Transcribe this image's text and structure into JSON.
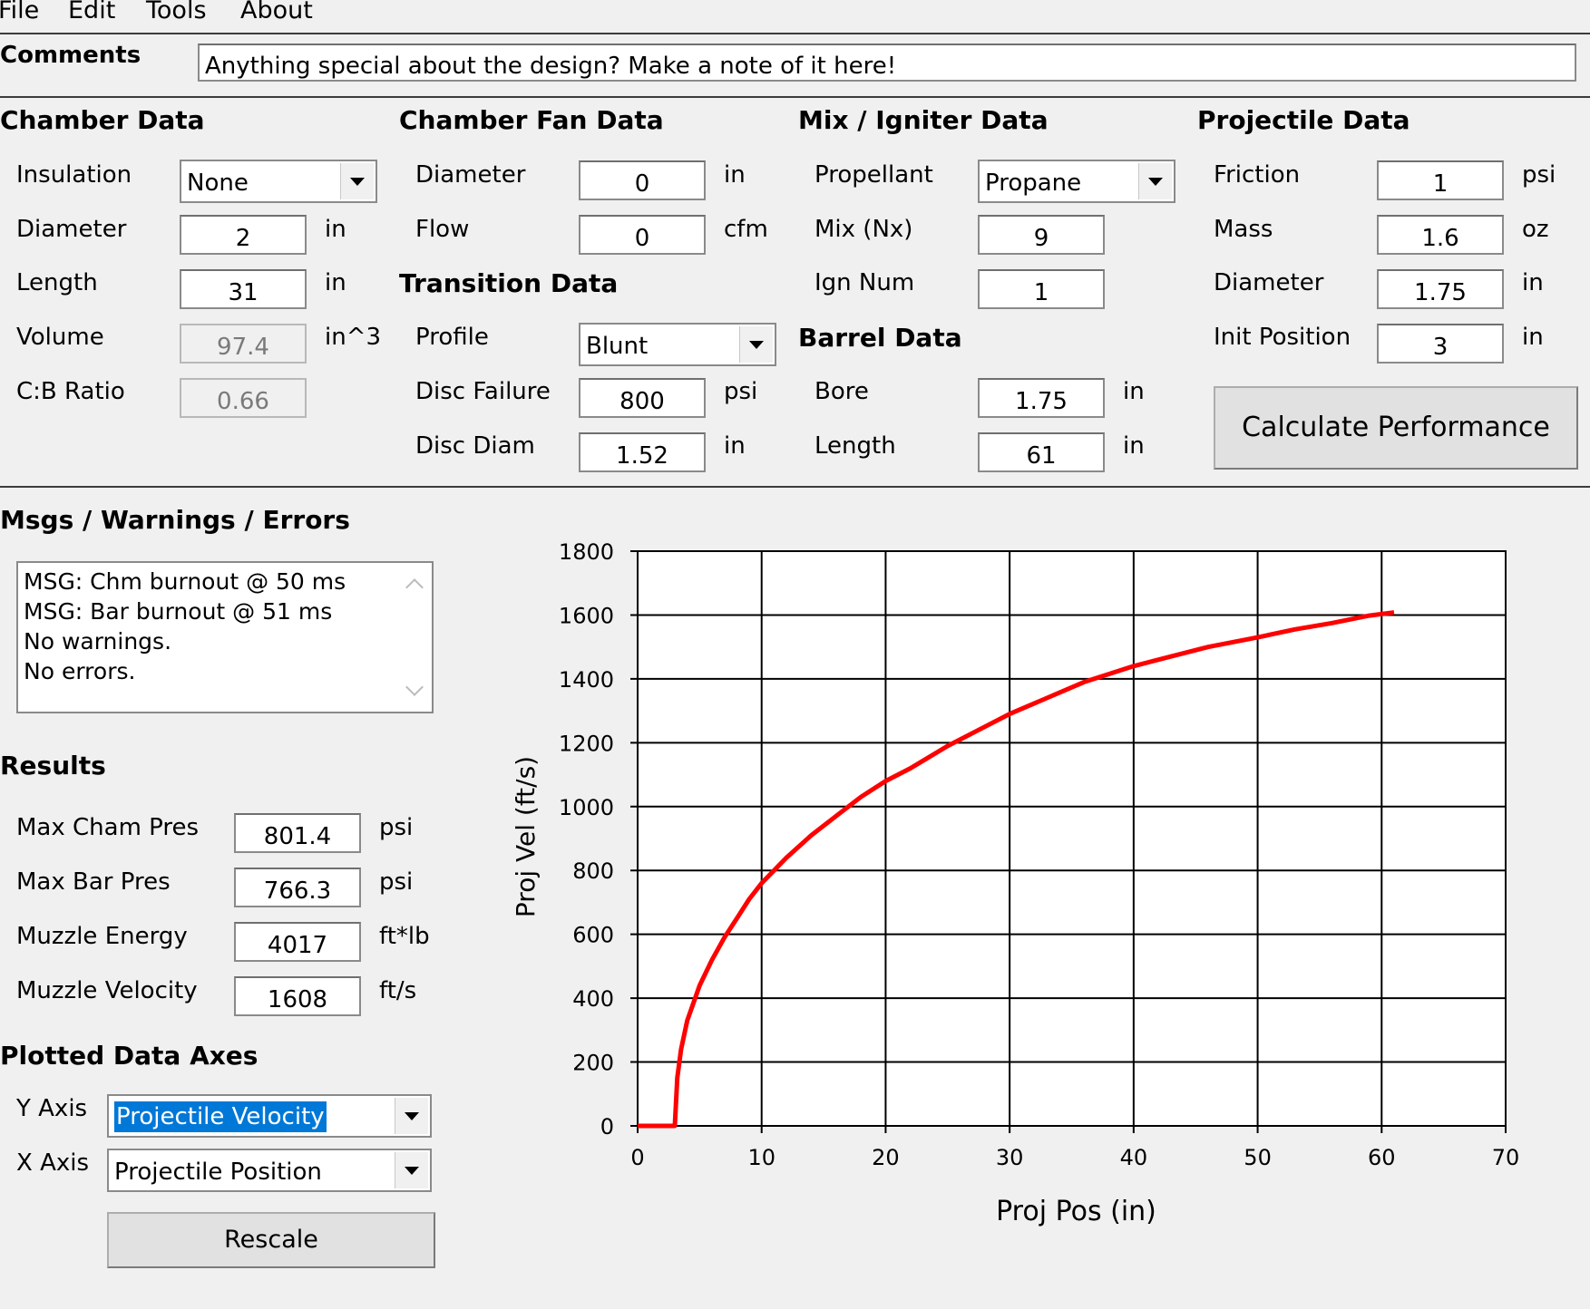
{
  "menu": {
    "file": "File",
    "edit": "Edit",
    "tools": "Tools",
    "about": "About"
  },
  "comments": {
    "label": "Comments",
    "value": "Anything special about the design?  Make a note of it here!"
  },
  "chamber": {
    "title": "Chamber Data",
    "insulation_label": "Insulation",
    "insulation_value": "None",
    "diameter_label": "Diameter",
    "diameter_value": "2",
    "diameter_unit": "in",
    "length_label": "Length",
    "length_value": "31",
    "length_unit": "in",
    "volume_label": "Volume",
    "volume_value": "97.4",
    "volume_unit": "in^3",
    "cb_label": "C:B Ratio",
    "cb_value": "0.66"
  },
  "fan": {
    "title": "Chamber Fan Data",
    "diameter_label": "Diameter",
    "diameter_value": "0",
    "diameter_unit": "in",
    "flow_label": "Flow",
    "flow_value": "0",
    "flow_unit": "cfm"
  },
  "transition": {
    "title": "Transition Data",
    "profile_label": "Profile",
    "profile_value": "Blunt",
    "disc_failure_label": "Disc Failure",
    "disc_failure_value": "800",
    "disc_failure_unit": "psi",
    "disc_diam_label": "Disc Diam",
    "disc_diam_value": "1.52",
    "disc_diam_unit": "in"
  },
  "mix": {
    "title": "Mix / Igniter Data",
    "propellant_label": "Propellant",
    "propellant_value": "Propane",
    "mix_label": "Mix (Nx)",
    "mix_value": "9",
    "ign_label": "Ign Num",
    "ign_value": "1"
  },
  "barrel": {
    "title": "Barrel Data",
    "bore_label": "Bore",
    "bore_value": "1.75",
    "bore_unit": "in",
    "length_label": "Length",
    "length_value": "61",
    "length_unit": "in"
  },
  "projectile": {
    "title": "Projectile Data",
    "friction_label": "Friction",
    "friction_value": "1",
    "friction_unit": "psi",
    "mass_label": "Mass",
    "mass_value": "1.6",
    "mass_unit": "oz",
    "diameter_label": "Diameter",
    "diameter_value": "1.75",
    "diameter_unit": "in",
    "init_label": "Init Position",
    "init_value": "3",
    "init_unit": "in",
    "calculate_label": "Calculate Performance"
  },
  "messages": {
    "title": "Msgs / Warnings / Errors",
    "lines": [
      "MSG: Chm burnout @ 50 ms",
      "MSG: Bar burnout @ 51 ms",
      "No warnings.",
      "No errors."
    ]
  },
  "results": {
    "title": "Results",
    "max_cham_label": "Max Cham Pres",
    "max_cham_value": "801.4",
    "max_cham_unit": "psi",
    "max_bar_label": "Max Bar Pres",
    "max_bar_value": "766.3",
    "max_bar_unit": "psi",
    "energy_label": "Muzzle Energy",
    "energy_value": "4017",
    "energy_unit": "ft*lb",
    "velocity_label": "Muzzle Velocity",
    "velocity_value": "1608",
    "velocity_unit": "ft/s"
  },
  "axes": {
    "title": "Plotted Data Axes",
    "y_label": "Y Axis",
    "y_value": "Projectile Velocity",
    "x_label": "X Axis",
    "x_value": "Projectile Position",
    "rescale_label": "Rescale"
  },
  "chart_data": {
    "type": "line",
    "title": "",
    "xlabel": "Proj Pos (in)",
    "ylabel": "Proj Vel (ft/s)",
    "xlim": [
      0,
      70
    ],
    "ylim": [
      0,
      1800
    ],
    "xticks": [
      "0",
      "10",
      "20",
      "30",
      "40",
      "50",
      "60",
      "70"
    ],
    "yticks": [
      "0",
      "200",
      "400",
      "600",
      "800",
      "1000",
      "1200",
      "1400",
      "1600",
      "1800"
    ],
    "grid": true,
    "series": [
      {
        "color": "#ff0000",
        "x": [
          0,
          3,
          3.2,
          3.5,
          4,
          5,
          6,
          7,
          8,
          9,
          10,
          12,
          14,
          16,
          18,
          20,
          22,
          25,
          28,
          30,
          33,
          36,
          40,
          43,
          46,
          50,
          53,
          56,
          59,
          61
        ],
        "y": [
          0,
          0,
          150,
          240,
          330,
          440,
          520,
          590,
          650,
          710,
          760,
          840,
          910,
          970,
          1030,
          1080,
          1120,
          1190,
          1250,
          1290,
          1340,
          1390,
          1440,
          1470,
          1500,
          1530,
          1555,
          1575,
          1598,
          1608
        ]
      }
    ]
  }
}
